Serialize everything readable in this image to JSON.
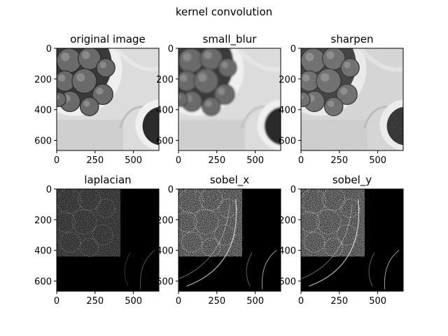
{
  "figure": {
    "suptitle": "kernel convolution"
  },
  "chart_data": [
    {
      "type": "heatmap",
      "title": "original image",
      "xlim": [
        0,
        666
      ],
      "ylim": [
        666,
        0
      ],
      "xticks": [
        0,
        250,
        500
      ],
      "yticks": [
        0,
        200,
        400,
        600
      ],
      "render": "photo"
    },
    {
      "type": "heatmap",
      "title": "small_blur",
      "xlim": [
        0,
        666
      ],
      "ylim": [
        666,
        0
      ],
      "xticks": [
        0,
        250,
        500
      ],
      "yticks": [
        0,
        200,
        400,
        600
      ],
      "render": "photo-blur"
    },
    {
      "type": "heatmap",
      "title": "sharpen",
      "xlim": [
        0,
        666
      ],
      "ylim": [
        666,
        0
      ],
      "xticks": [
        0,
        250,
        500
      ],
      "yticks": [
        0,
        200,
        400,
        600
      ],
      "render": "photo-sharp"
    },
    {
      "type": "heatmap",
      "title": "laplacian",
      "xlim": [
        0,
        666
      ],
      "ylim": [
        666,
        0
      ],
      "xticks": [
        0,
        250,
        500
      ],
      "yticks": [
        0,
        200,
        400,
        600
      ],
      "render": "edges-faint"
    },
    {
      "type": "heatmap",
      "title": "sobel_x",
      "xlim": [
        0,
        666
      ],
      "ylim": [
        666,
        0
      ],
      "xticks": [
        0,
        250,
        500
      ],
      "yticks": [
        0,
        200,
        400,
        600
      ],
      "render": "edges-x"
    },
    {
      "type": "heatmap",
      "title": "sobel_y",
      "xlim": [
        0,
        666
      ],
      "ylim": [
        666,
        0
      ],
      "xticks": [
        0,
        250,
        500
      ],
      "yticks": [
        0,
        200,
        400,
        600
      ],
      "render": "edges-y"
    }
  ]
}
